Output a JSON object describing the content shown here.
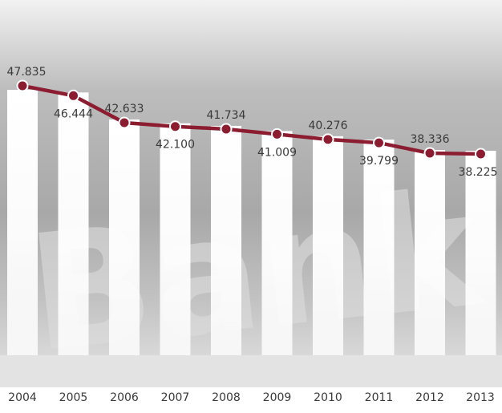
{
  "background_word": "Bank",
  "colors": {
    "line": "#8c1c30",
    "marker": "#8c1c30",
    "marker_stroke": "#ffffff",
    "column": "#ffffff",
    "axis_band": "#e6e6e6"
  },
  "chart_data": {
    "type": "line",
    "title": "",
    "xlabel": "",
    "ylabel": "",
    "categories": [
      "2004",
      "2005",
      "2006",
      "2007",
      "2008",
      "2009",
      "2010",
      "2011",
      "2012",
      "2013"
    ],
    "series": [
      {
        "values": [
          47835,
          46444,
          42633,
          42100,
          41734,
          41009,
          40276,
          39799,
          38336,
          38225
        ],
        "value_labels": [
          "47.835",
          "46.444",
          "42.633",
          "42.100",
          "41.734",
          "41.009",
          "40.276",
          "39.799",
          "38.336",
          "38.225"
        ]
      }
    ],
    "grid": false,
    "legend": "none"
  }
}
